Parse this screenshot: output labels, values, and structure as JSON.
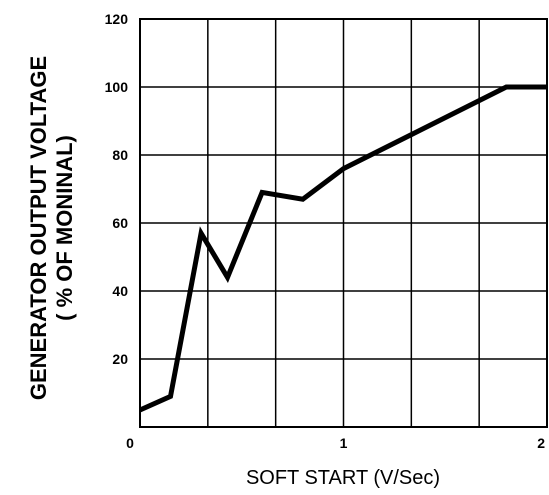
{
  "chart_data": {
    "type": "line",
    "title": "",
    "xlabel": "SOFT START (V/Sec)",
    "ylabel_line1": "GENERATOR OUTPUT VOLTAGE",
    "ylabel_line2": "( % OF MONINAL)",
    "xlim": [
      0,
      2
    ],
    "ylim": [
      0,
      120
    ],
    "x_ticks": [
      0,
      1,
      2
    ],
    "x_tick_labels": [
      "0",
      "1",
      "2"
    ],
    "y_ticks": [
      20,
      40,
      60,
      80,
      100,
      120
    ],
    "y_tick_labels": [
      "20",
      "40",
      "60",
      "80",
      "100",
      "120"
    ],
    "grid": true,
    "grid_x_step": 0.333,
    "grid_y_step": 20,
    "series": [
      {
        "color": "#000000",
        "x": [
          0,
          0.15,
          0.3,
          0.43,
          0.6,
          0.8,
          1.0,
          1.3,
          1.8,
          2.0
        ],
        "y": [
          5,
          9,
          57,
          44,
          69,
          67,
          76,
          85,
          100,
          100
        ]
      }
    ]
  }
}
